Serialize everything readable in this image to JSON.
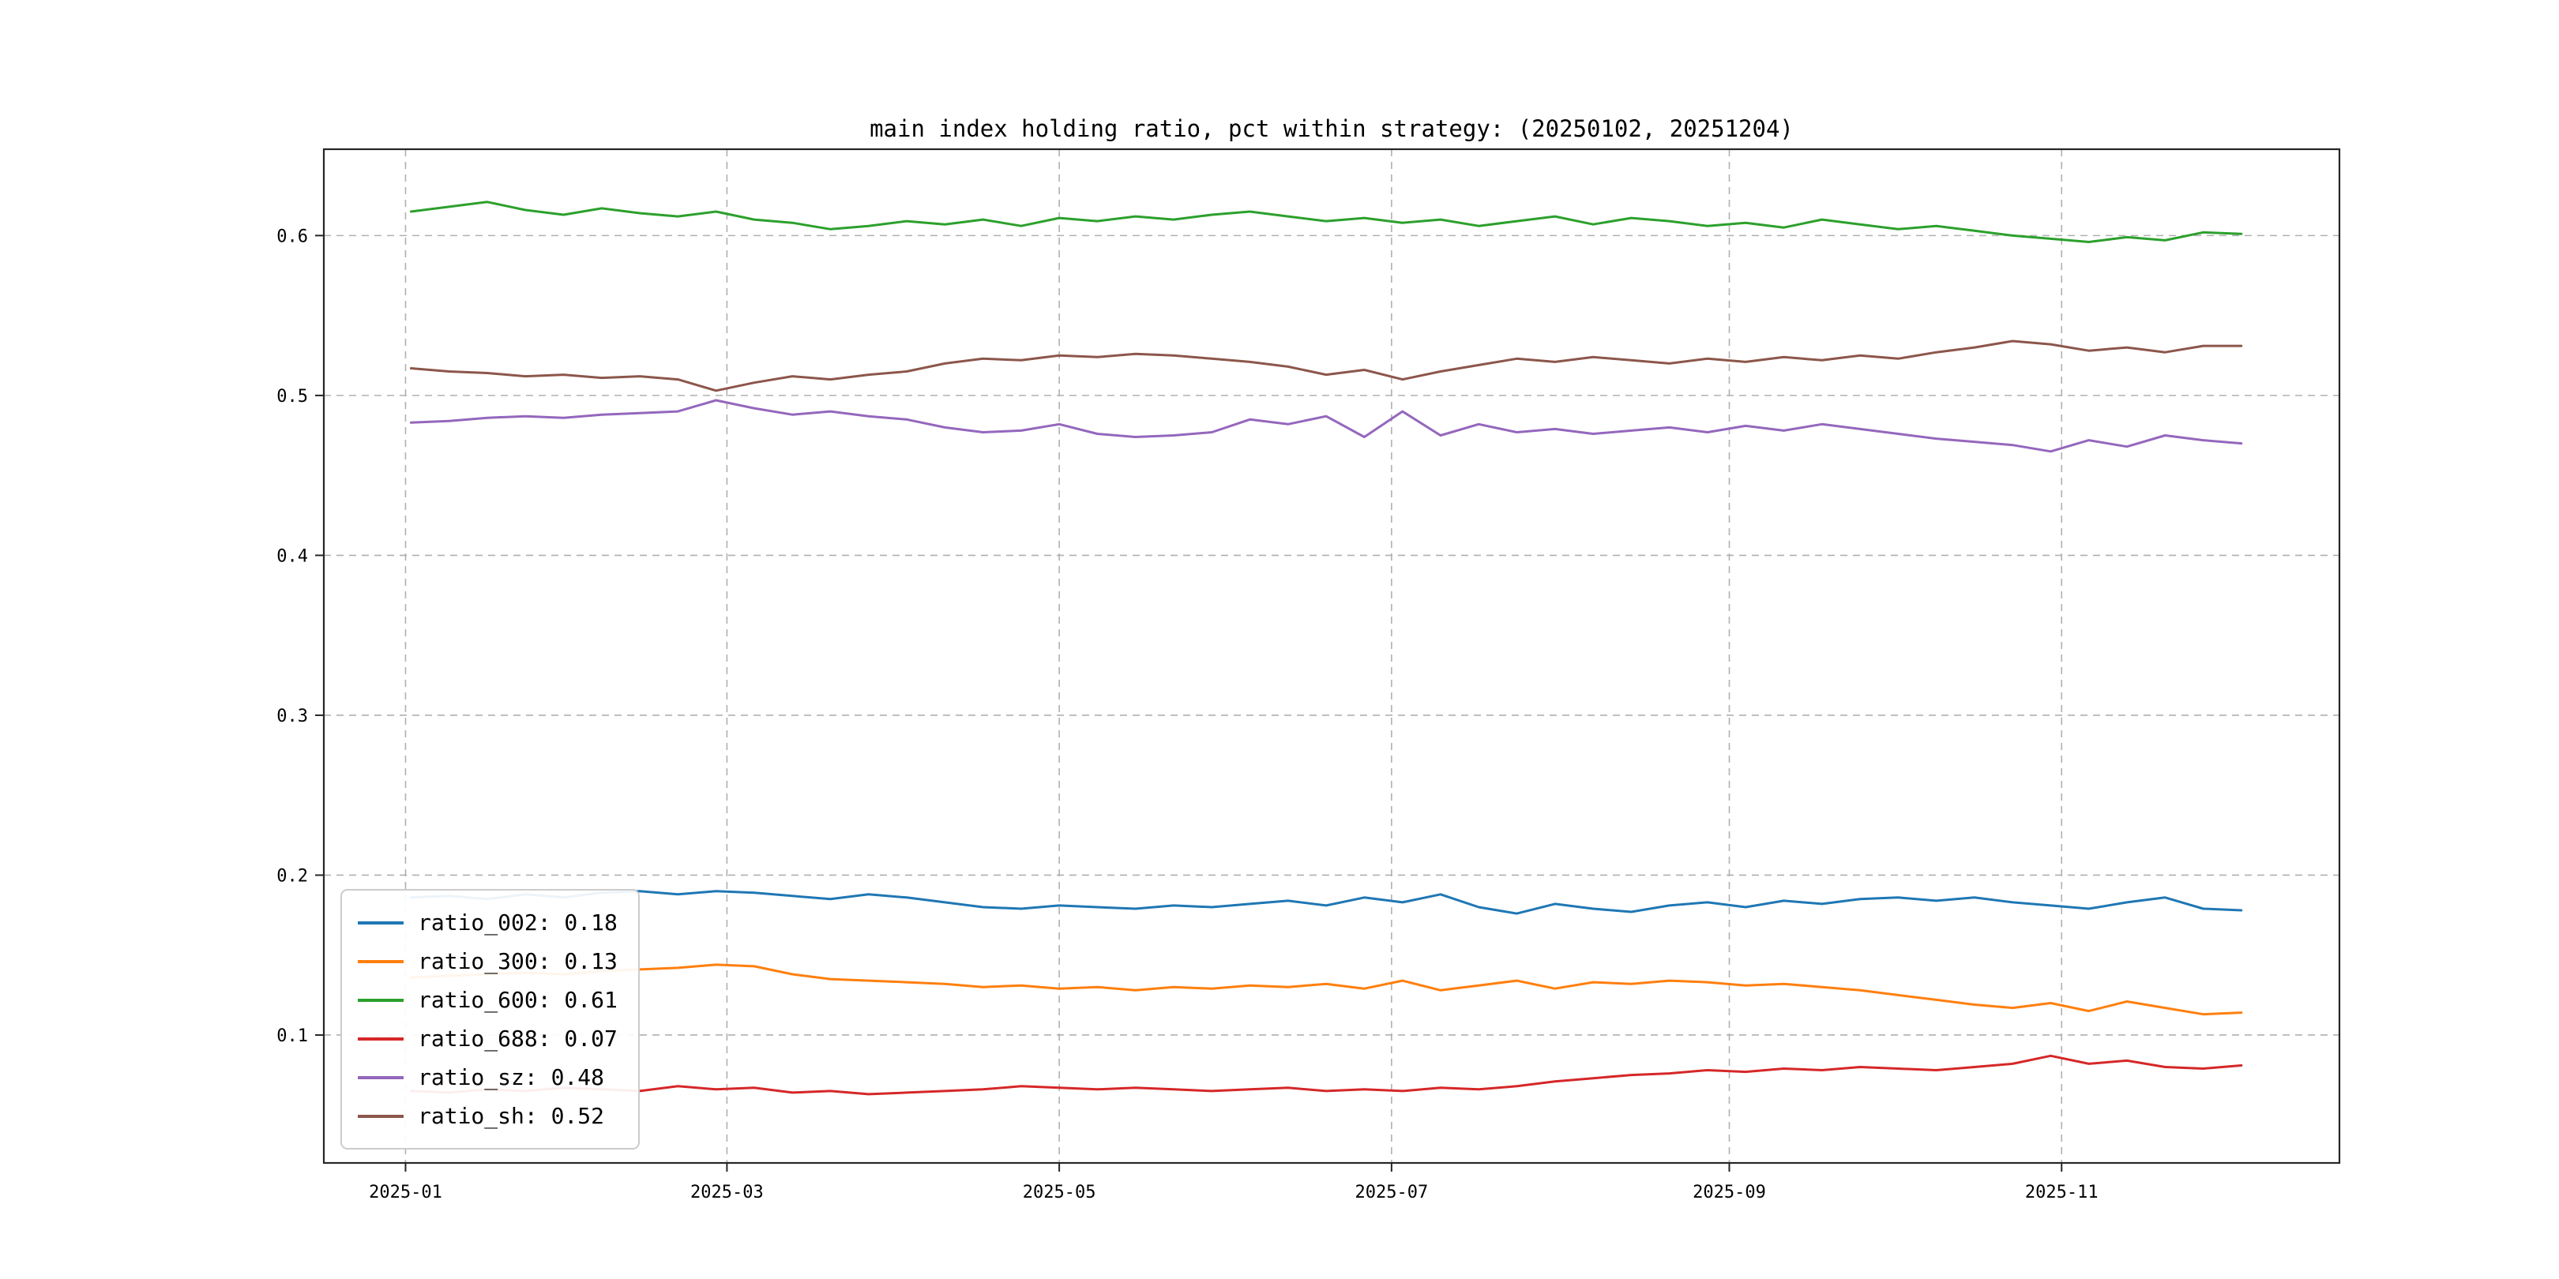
{
  "chart_data": {
    "type": "line",
    "title": "main index holding ratio, pct within strategy: (20250102, 20251204)",
    "xlabel": "",
    "ylabel": "",
    "x_unit": "days since 2025-01-01",
    "xlim": [
      -15,
      355
    ],
    "ylim": [
      0.02,
      0.654
    ],
    "grid": "dashed",
    "legend_position": "lower-left",
    "x_ticks": [
      {
        "day": 0,
        "label": "2025-01"
      },
      {
        "day": 59,
        "label": "2025-03"
      },
      {
        "day": 120,
        "label": "2025-05"
      },
      {
        "day": 181,
        "label": "2025-07"
      },
      {
        "day": 243,
        "label": "2025-09"
      },
      {
        "day": 304,
        "label": "2025-11"
      }
    ],
    "y_ticks": [
      {
        "value": 0.1,
        "label": "0.1"
      },
      {
        "value": 0.2,
        "label": "0.2"
      },
      {
        "value": 0.3,
        "label": "0.3"
      },
      {
        "value": 0.4,
        "label": "0.4"
      },
      {
        "value": 0.5,
        "label": "0.5"
      },
      {
        "value": 0.6,
        "label": "0.6"
      }
    ],
    "x_days": [
      1,
      8,
      15,
      22,
      29,
      36,
      43,
      50,
      57,
      64,
      71,
      78,
      85,
      92,
      99,
      106,
      113,
      120,
      127,
      134,
      141,
      148,
      155,
      162,
      169,
      176,
      183,
      190,
      197,
      204,
      211,
      218,
      225,
      232,
      239,
      246,
      253,
      260,
      267,
      274,
      281,
      288,
      295,
      302,
      309,
      316,
      323,
      330,
      337
    ],
    "series": [
      {
        "name": "ratio_002",
        "legend_label": "ratio_002: 0.18",
        "color": "#1f77b4",
        "values": [
          0.186,
          0.187,
          0.185,
          0.188,
          0.186,
          0.189,
          0.19,
          0.188,
          0.19,
          0.189,
          0.187,
          0.185,
          0.188,
          0.186,
          0.183,
          0.18,
          0.179,
          0.181,
          0.18,
          0.179,
          0.181,
          0.18,
          0.182,
          0.184,
          0.181,
          0.186,
          0.183,
          0.188,
          0.18,
          0.176,
          0.182,
          0.179,
          0.177,
          0.181,
          0.183,
          0.18,
          0.184,
          0.182,
          0.185,
          0.186,
          0.184,
          0.186,
          0.183,
          0.181,
          0.179,
          0.183,
          0.186,
          0.179,
          0.178
        ]
      },
      {
        "name": "ratio_300",
        "legend_label": "ratio_300: 0.13",
        "color": "#ff7f0e",
        "values": [
          0.136,
          0.137,
          0.138,
          0.139,
          0.138,
          0.14,
          0.141,
          0.142,
          0.144,
          0.143,
          0.138,
          0.135,
          0.134,
          0.133,
          0.132,
          0.13,
          0.131,
          0.129,
          0.13,
          0.128,
          0.13,
          0.129,
          0.131,
          0.13,
          0.132,
          0.129,
          0.134,
          0.128,
          0.131,
          0.134,
          0.129,
          0.133,
          0.132,
          0.134,
          0.133,
          0.131,
          0.132,
          0.13,
          0.128,
          0.125,
          0.122,
          0.119,
          0.117,
          0.12,
          0.115,
          0.121,
          0.117,
          0.113,
          0.114
        ]
      },
      {
        "name": "ratio_600",
        "legend_label": "ratio_600: 0.61",
        "color": "#2ca02c",
        "values": [
          0.615,
          0.618,
          0.621,
          0.616,
          0.613,
          0.617,
          0.614,
          0.612,
          0.615,
          0.61,
          0.608,
          0.604,
          0.606,
          0.609,
          0.607,
          0.61,
          0.606,
          0.611,
          0.609,
          0.612,
          0.61,
          0.613,
          0.615,
          0.612,
          0.609,
          0.611,
          0.608,
          0.61,
          0.606,
          0.609,
          0.612,
          0.607,
          0.611,
          0.609,
          0.606,
          0.608,
          0.605,
          0.61,
          0.607,
          0.604,
          0.606,
          0.603,
          0.6,
          0.598,
          0.596,
          0.599,
          0.597,
          0.602,
          0.601
        ]
      },
      {
        "name": "ratio_688",
        "legend_label": "ratio_688: 0.07",
        "color": "#d62728",
        "values": [
          0.065,
          0.064,
          0.066,
          0.065,
          0.067,
          0.066,
          0.065,
          0.068,
          0.066,
          0.067,
          0.064,
          0.065,
          0.063,
          0.064,
          0.065,
          0.066,
          0.068,
          0.067,
          0.066,
          0.067,
          0.066,
          0.065,
          0.066,
          0.067,
          0.065,
          0.066,
          0.065,
          0.067,
          0.066,
          0.068,
          0.071,
          0.073,
          0.075,
          0.076,
          0.078,
          0.077,
          0.079,
          0.078,
          0.08,
          0.079,
          0.078,
          0.08,
          0.082,
          0.087,
          0.082,
          0.084,
          0.08,
          0.079,
          0.081
        ]
      },
      {
        "name": "ratio_sz",
        "legend_label": "ratio_sz: 0.48",
        "color": "#9467bd",
        "values": [
          0.483,
          0.484,
          0.486,
          0.487,
          0.486,
          0.488,
          0.489,
          0.49,
          0.497,
          0.492,
          0.488,
          0.49,
          0.487,
          0.485,
          0.48,
          0.477,
          0.478,
          0.482,
          0.476,
          0.474,
          0.475,
          0.477,
          0.485,
          0.482,
          0.487,
          0.474,
          0.49,
          0.475,
          0.482,
          0.477,
          0.479,
          0.476,
          0.478,
          0.48,
          0.477,
          0.481,
          0.478,
          0.482,
          0.479,
          0.476,
          0.473,
          0.471,
          0.469,
          0.465,
          0.472,
          0.468,
          0.475,
          0.472,
          0.47
        ]
      },
      {
        "name": "ratio_sh",
        "legend_label": "ratio_sh: 0.52",
        "color": "#8c564b",
        "values": [
          0.517,
          0.515,
          0.514,
          0.512,
          0.513,
          0.511,
          0.512,
          0.51,
          0.503,
          0.508,
          0.512,
          0.51,
          0.513,
          0.515,
          0.52,
          0.523,
          0.522,
          0.525,
          0.524,
          0.526,
          0.525,
          0.523,
          0.521,
          0.518,
          0.513,
          0.516,
          0.51,
          0.515,
          0.519,
          0.523,
          0.521,
          0.524,
          0.522,
          0.52,
          0.523,
          0.521,
          0.524,
          0.522,
          0.525,
          0.523,
          0.527,
          0.53,
          0.534,
          0.532,
          0.528,
          0.53,
          0.527,
          0.531,
          0.531
        ]
      }
    ]
  }
}
